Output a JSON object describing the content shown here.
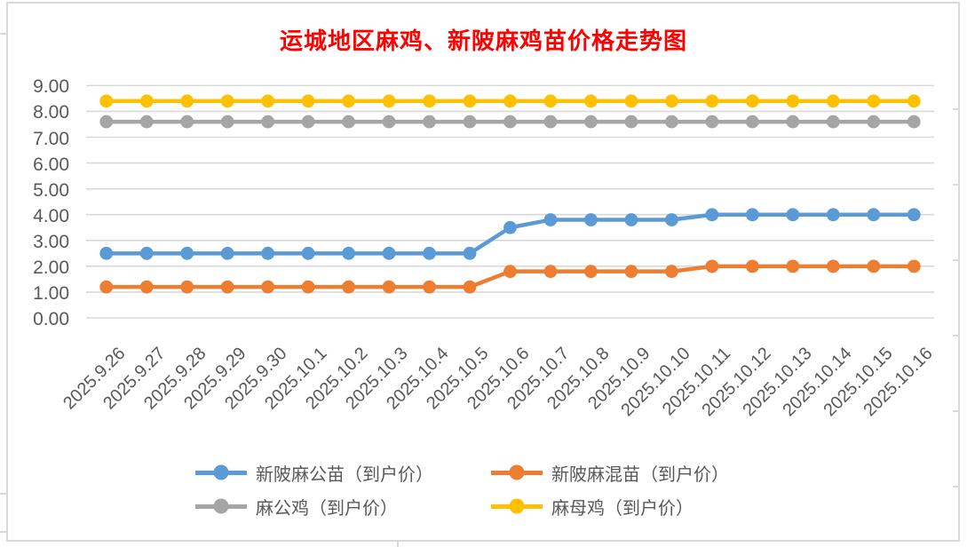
{
  "chart_data": {
    "type": "line",
    "title": "运城地区麻鸡、新陂麻鸡苗价格走势图",
    "title_color": "#FF0000",
    "categories": [
      "2025.9.26",
      "2025.9.27",
      "2025.9.28",
      "2025.9.29",
      "2025.9.30",
      "2025.10.1",
      "2025.10.2",
      "2025.10.3",
      "2025.10.4",
      "2025.10.5",
      "2025.10.6",
      "2025.10.7",
      "2025.10.8",
      "2025.10.9",
      "2025.10.10",
      "2025.10.11",
      "2025.10.12",
      "2025.10.13",
      "2025.10.14",
      "2025.10.15",
      "2025.10.16"
    ],
    "series": [
      {
        "name": "新陂麻公苗（到户价）",
        "color": "#5B9BD5",
        "values": [
          2.5,
          2.5,
          2.5,
          2.5,
          2.5,
          2.5,
          2.5,
          2.5,
          2.5,
          2.5,
          3.5,
          3.8,
          3.8,
          3.8,
          3.8,
          4.0,
          4.0,
          4.0,
          4.0,
          4.0,
          4.0
        ]
      },
      {
        "name": "新陂麻混苗（到户价）",
        "color": "#ED7D31",
        "values": [
          1.2,
          1.2,
          1.2,
          1.2,
          1.2,
          1.2,
          1.2,
          1.2,
          1.2,
          1.2,
          1.8,
          1.8,
          1.8,
          1.8,
          1.8,
          2.0,
          2.0,
          2.0,
          2.0,
          2.0,
          2.0
        ]
      },
      {
        "name": "麻公鸡（到户价）",
        "color": "#A5A5A5",
        "values": [
          7.6,
          7.6,
          7.6,
          7.6,
          7.6,
          7.6,
          7.6,
          7.6,
          7.6,
          7.6,
          7.6,
          7.6,
          7.6,
          7.6,
          7.6,
          7.6,
          7.6,
          7.6,
          7.6,
          7.6,
          7.6
        ]
      },
      {
        "name": "麻母鸡（到户价）",
        "color": "#FFC000",
        "values": [
          8.4,
          8.4,
          8.4,
          8.4,
          8.4,
          8.4,
          8.4,
          8.4,
          8.4,
          8.4,
          8.4,
          8.4,
          8.4,
          8.4,
          8.4,
          8.4,
          8.4,
          8.4,
          8.4,
          8.4,
          8.4
        ]
      }
    ],
    "y_ticks": [
      "0.00",
      "1.00",
      "2.00",
      "3.00",
      "4.00",
      "5.00",
      "6.00",
      "7.00",
      "8.00",
      "9.00"
    ],
    "ylim": [
      0,
      9
    ],
    "xlabel": "",
    "ylabel": "",
    "grid": true,
    "legend_position": "bottom",
    "axis_text_color": "#595959",
    "gridline_color": "#D9D9D9"
  }
}
